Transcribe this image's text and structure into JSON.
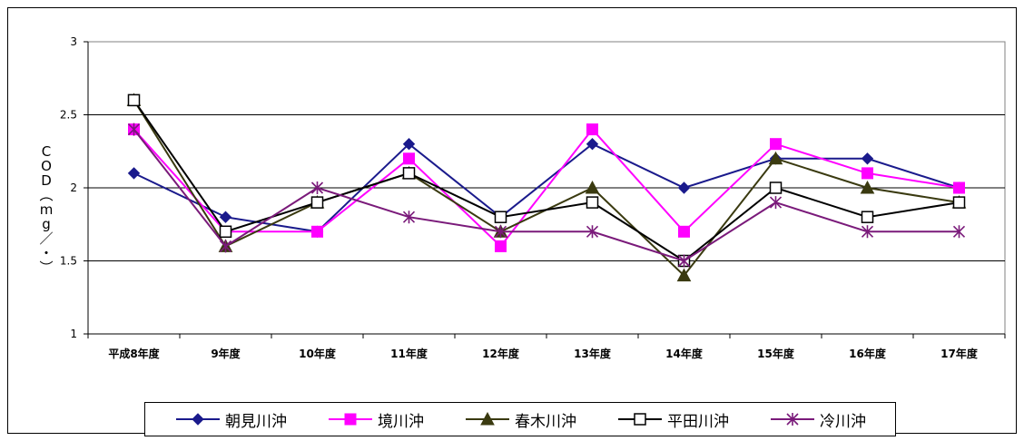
{
  "chart_data": {
    "type": "line",
    "categories": [
      "平成8年度",
      "9年度",
      "10年度",
      "11年度",
      "12年度",
      "13年度",
      "14年度",
      "15年度",
      "16年度",
      "17年度"
    ],
    "ylabel": "COD（mg／・）",
    "ylim": [
      1,
      3
    ],
    "yticks": [
      1,
      1.5,
      2,
      2.5,
      3
    ],
    "ytick_labels": [
      "1",
      "1.5",
      "2",
      "2.5",
      "3"
    ],
    "grid": true,
    "legend_position": "bottom",
    "series": [
      {
        "name": "朝見川沖",
        "color": "#1a1a8c",
        "marker": "diamond",
        "values": [
          2.1,
          1.8,
          1.7,
          2.3,
          1.8,
          2.3,
          2.0,
          2.2,
          2.2,
          2.0
        ]
      },
      {
        "name": "境川沖",
        "color": "#ff00ff",
        "marker": "square",
        "values": [
          2.4,
          1.7,
          1.7,
          2.2,
          1.6,
          2.4,
          1.7,
          2.3,
          2.1,
          2.0
        ]
      },
      {
        "name": "春木川沖",
        "color": "#3a3a10",
        "marker": "triangle",
        "values": [
          2.6,
          1.6,
          1.9,
          2.1,
          1.7,
          2.0,
          1.4,
          2.2,
          2.0,
          1.9
        ]
      },
      {
        "name": "平田川沖",
        "color": "#000000",
        "marker": "open-square",
        "values": [
          2.6,
          1.7,
          1.9,
          2.1,
          1.8,
          1.9,
          1.5,
          2.0,
          1.8,
          1.9
        ]
      },
      {
        "name": "冷川沖",
        "color": "#7a1a7a",
        "marker": "star",
        "values": [
          2.4,
          1.6,
          2.0,
          1.8,
          1.7,
          1.7,
          1.5,
          1.9,
          1.7,
          1.7
        ]
      }
    ]
  }
}
